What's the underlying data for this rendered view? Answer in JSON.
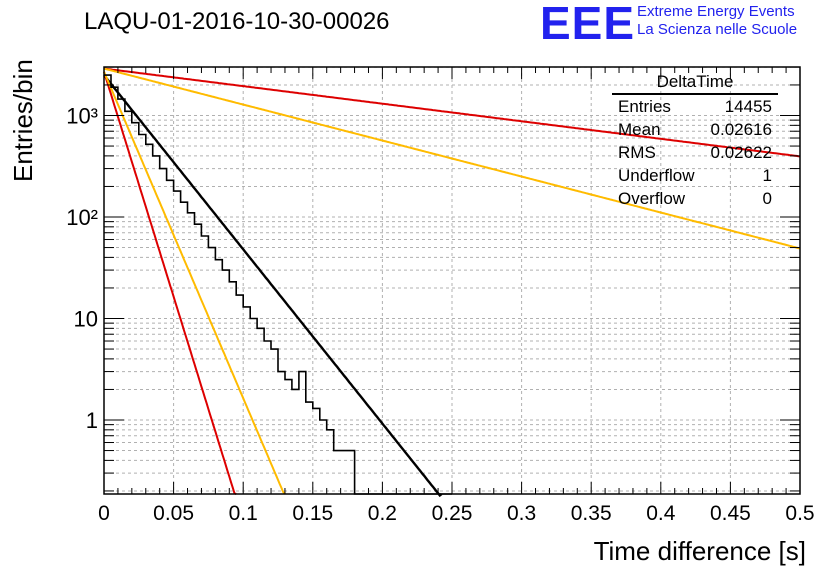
{
  "title": "LAQU-01-2016-10-30-00026",
  "logo": {
    "mark": "EEE",
    "line1": "Extreme Energy Events",
    "line2": "La Scienza nelle Scuole"
  },
  "stats_box": {
    "header": "DeltaTime",
    "rows": [
      {
        "label": "Entries",
        "value": "14455"
      },
      {
        "label": "Mean",
        "value": "0.02616"
      },
      {
        "label": "RMS",
        "value": "0.02622"
      },
      {
        "label": "Underflow",
        "value": "1"
      },
      {
        "label": "Overflow",
        "value": "0"
      }
    ]
  },
  "colors": {
    "histogram": "#000000",
    "fit": "#000000",
    "red_curve": "#dd0000",
    "orange_curve": "#ffbb00",
    "grid": "#bbbbbb",
    "logo": "#2222ee"
  },
  "chart_data": {
    "type": "histogram",
    "title": "LAQU-01-2016-10-30-00026",
    "xlabel": "Time difference [s]",
    "ylabel": "Entries/bin",
    "xlim": [
      0,
      0.5
    ],
    "ylim": [
      0.18,
      4500
    ],
    "yscale": "log",
    "grid": true,
    "x_ticks": [
      "0",
      "0.05",
      "0.1",
      "0.15",
      "0.2",
      "0.25",
      "0.3",
      "0.35",
      "0.4",
      "0.45",
      "0.5"
    ],
    "x_tick_values": [
      0,
      0.05,
      0.1,
      0.15,
      0.2,
      0.25,
      0.3,
      0.35,
      0.4,
      0.45,
      0.5
    ],
    "y_ticks": [
      "1",
      "10",
      "10²",
      "10³"
    ],
    "y_tick_values": [
      1,
      10,
      100,
      1000
    ],
    "bin_width": 0.005,
    "bin_start": 0,
    "bin_counts": [
      2500,
      1900,
      1450,
      1100,
      850,
      650,
      520,
      400,
      300,
      230,
      180,
      140,
      110,
      85,
      65,
      50,
      38,
      30,
      23,
      17,
      13,
      10,
      8,
      6,
      5,
      3,
      2.5,
      2,
      3,
      1.5,
      1.3,
      1,
      0.8,
      0.5,
      0.5,
      0.5,
      0.15,
      0.15,
      0.15,
      0.15,
      0.15,
      0.15,
      0.15,
      0.15,
      0.15,
      0.15,
      0.15,
      0.15,
      0.15,
      0.15
    ],
    "series": [
      {
        "name": "fit",
        "amplitude": 2500,
        "tau": 0.0253,
        "color": "#000000"
      },
      {
        "name": "red-fast",
        "amplitude": 2700,
        "tau": 0.0098,
        "color": "#dd0000"
      },
      {
        "name": "orange-fast",
        "amplitude": 2700,
        "tau": 0.0135,
        "color": "#ffbb00"
      },
      {
        "name": "red-slow",
        "amplitude": 2900,
        "tau": 0.251,
        "color": "#dd0000"
      },
      {
        "name": "orange-slow",
        "amplitude": 2900,
        "tau": 0.1225,
        "color": "#ffbb00"
      }
    ]
  }
}
